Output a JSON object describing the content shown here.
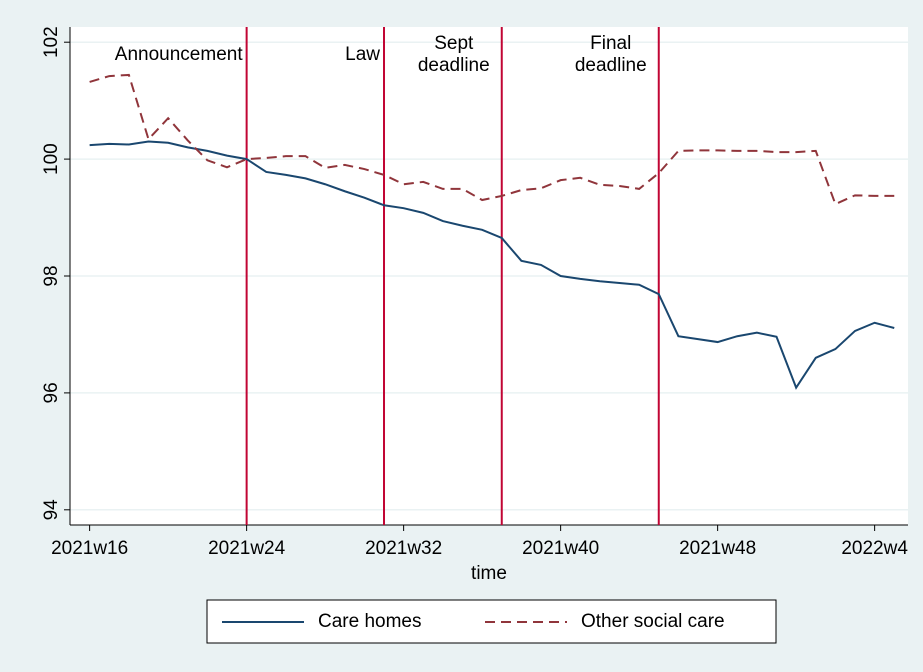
{
  "chart_data": {
    "type": "line",
    "x_label": "time",
    "x": [
      16,
      17,
      18,
      19,
      20,
      21,
      22,
      23,
      24,
      25,
      26,
      27,
      28,
      29,
      30,
      31,
      32,
      33,
      34,
      35,
      36,
      37,
      38,
      39,
      40,
      41,
      42,
      43,
      44,
      45,
      46,
      47,
      48,
      49,
      50,
      51,
      52,
      53,
      54,
      55,
      56,
      57
    ],
    "series": [
      {
        "name": "Care homes",
        "color": "#1a476f",
        "dash": "solid",
        "values": [
          100.24,
          100.26,
          100.25,
          100.3,
          100.28,
          100.2,
          100.14,
          100.06,
          100.0,
          99.78,
          99.73,
          99.67,
          99.57,
          99.45,
          99.34,
          99.21,
          99.16,
          99.08,
          98.94,
          98.86,
          98.79,
          98.65,
          98.26,
          98.19,
          98.0,
          97.95,
          97.91,
          97.88,
          97.85,
          97.69,
          96.97,
          96.92,
          96.87,
          96.97,
          97.03,
          96.96,
          96.09,
          96.6,
          96.75,
          97.06,
          97.2,
          97.11
        ]
      },
      {
        "name": "Other social care",
        "color": "#90353b",
        "dash": "dashed",
        "values": [
          101.32,
          101.42,
          101.44,
          100.34,
          100.7,
          100.32,
          99.98,
          99.86,
          100.0,
          100.02,
          100.05,
          100.05,
          99.85,
          99.9,
          99.83,
          99.73,
          99.57,
          99.61,
          99.49,
          99.49,
          99.3,
          99.37,
          99.47,
          99.5,
          99.64,
          99.68,
          99.56,
          99.54,
          99.49,
          99.76,
          100.14,
          100.15,
          100.15,
          100.14,
          100.14,
          100.12,
          100.12,
          100.14,
          99.23,
          99.38,
          99.37,
          99.37
        ]
      }
    ],
    "xlim": [
      15,
      57.7
    ],
    "ylim": [
      93.74,
      102.26
    ],
    "xticks": [
      {
        "value": 16,
        "label": "2021w16"
      },
      {
        "value": 24,
        "label": "2021w24"
      },
      {
        "value": 32,
        "label": "2021w32"
      },
      {
        "value": 40,
        "label": "2021w40"
      },
      {
        "value": 48,
        "label": "2021w48"
      },
      {
        "value": 56,
        "label": "2022w4"
      }
    ],
    "yticks": [
      94,
      96,
      98,
      100,
      102
    ],
    "grid": true,
    "vlines": [
      {
        "x": 24,
        "label": [
          "Announcement"
        ]
      },
      {
        "x": 31,
        "label": [
          "Law"
        ]
      },
      {
        "x": 37,
        "label": [
          "Sept",
          "deadline"
        ]
      },
      {
        "x": 45,
        "label": [
          "Final",
          "deadline"
        ]
      }
    ],
    "vline_color": "#c10534",
    "legend": "bottom"
  }
}
